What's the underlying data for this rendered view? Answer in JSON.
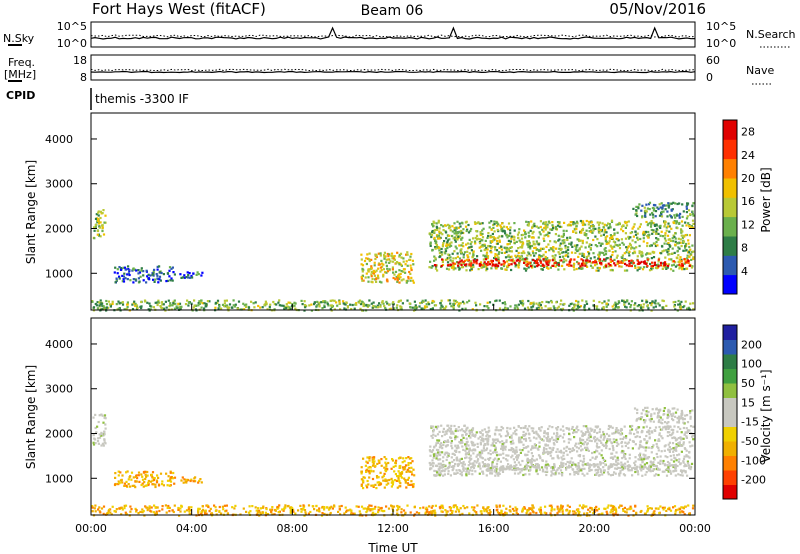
{
  "header": {
    "station": "Fort Hays West (fitACF)",
    "beam": "Beam 06",
    "date": "05/Nov/2016"
  },
  "top_panels": {
    "nsky_label": "N.Sky",
    "nsky_ticks": [
      "10^5",
      "10^0"
    ],
    "nsearch_label": "N.Search",
    "nsearch_ticks": [
      "10^5",
      "10^0"
    ],
    "freq_label": "Freq.",
    "freq_unit": "[MHz]",
    "freq_ticks": [
      "18",
      "8"
    ],
    "nave_label": "Nave",
    "nave_ticks": [
      "60",
      "0"
    ],
    "cpid_label": "CPID",
    "cpid_text": "themis -3300 IF"
  },
  "chart_data": [
    {
      "type": "heatmap",
      "panel": "power",
      "ylabel": "Slant Range [km]",
      "yticks": [
        "4000",
        "3000",
        "2000",
        "1000"
      ],
      "ylim": [
        180,
        4580
      ],
      "xlim": [
        0,
        24
      ],
      "xticks": [
        "00:00",
        "04:00",
        "08:00",
        "12:00",
        "16:00",
        "20:00",
        "00:00"
      ],
      "colorbar": {
        "label": "Power [dB]",
        "ticks": [
          "28",
          "24",
          "20",
          "16",
          "12",
          "8",
          "4"
        ],
        "range": [
          0,
          30
        ],
        "colors": [
          "#0000ff",
          "#2c5ab0",
          "#2e7d46",
          "#6ab04c",
          "#b8c936",
          "#f0c000",
          "#ff8000",
          "#ff3000",
          "#e00000"
        ]
      },
      "regions": [
        {
          "t0": 0.05,
          "t1": 0.55,
          "r0": 1750,
          "r1": 2450,
          "level": 0.45
        },
        {
          "t0": 0.9,
          "t1": 3.3,
          "r0": 820,
          "r1": 1180,
          "level": 0.2
        },
        {
          "t0": 3.5,
          "t1": 4.4,
          "r0": 920,
          "r1": 1050,
          "level": 0.2
        },
        {
          "t0": 10.7,
          "t1": 12.8,
          "r0": 800,
          "r1": 1500,
          "level": 0.55
        },
        {
          "t0": 13.4,
          "t1": 23.9,
          "r0": 1080,
          "r1": 2200,
          "level": 0.45
        },
        {
          "t0": 13.6,
          "t1": 23.9,
          "r0": 1180,
          "r1": 1340,
          "level": 0.9
        },
        {
          "t0": 21.5,
          "t1": 23.9,
          "r0": 2250,
          "r1": 2600,
          "level": 0.3
        },
        {
          "t0": 0.0,
          "t1": 23.9,
          "r0": 190,
          "r1": 420,
          "level": 0.4
        }
      ]
    },
    {
      "type": "heatmap",
      "panel": "velocity",
      "ylabel": "Slant Range [km]",
      "yticks": [
        "4000",
        "3000",
        "2000",
        "1000"
      ],
      "ylim": [
        180,
        4580
      ],
      "xlim": [
        0,
        24
      ],
      "xticks": [
        "00:00",
        "04:00",
        "08:00",
        "12:00",
        "16:00",
        "20:00",
        "00:00"
      ],
      "xlabel": "Time UT",
      "colorbar": {
        "label": "Velocity [m s⁻¹]",
        "ticks": [
          "200",
          "100",
          "50",
          "15",
          "-15",
          "-50",
          "-100",
          "-200"
        ],
        "range": [
          -250,
          250
        ],
        "colors": [
          "#e00000",
          "#ff4000",
          "#ff8000",
          "#f0b000",
          "#f0d000",
          "#c8c8c0",
          "#c8c8c0",
          "#90c040",
          "#40a040",
          "#2e7d46",
          "#2c5ab0",
          "#2020a0"
        ]
      },
      "regions": [
        {
          "t0": 0.05,
          "t1": 0.55,
          "r0": 1750,
          "r1": 2450,
          "level": 0.5
        },
        {
          "t0": 0.9,
          "t1": 3.3,
          "r0": 820,
          "r1": 1180,
          "level": 0.3
        },
        {
          "t0": 3.5,
          "t1": 4.4,
          "r0": 920,
          "r1": 1050,
          "level": 0.3
        },
        {
          "t0": 10.7,
          "t1": 12.8,
          "r0": 800,
          "r1": 1500,
          "level": 0.25
        },
        {
          "t0": 13.4,
          "t1": 23.9,
          "r0": 1080,
          "r1": 2200,
          "level": 0.5
        },
        {
          "t0": 13.6,
          "t1": 23.9,
          "r0": 1180,
          "r1": 1340,
          "level": 0.5
        },
        {
          "t0": 21.5,
          "t1": 23.9,
          "r0": 2250,
          "r1": 2600,
          "level": 0.5
        },
        {
          "t0": 0.0,
          "t1": 23.9,
          "r0": 190,
          "r1": 420,
          "level": 0.3
        }
      ]
    }
  ]
}
